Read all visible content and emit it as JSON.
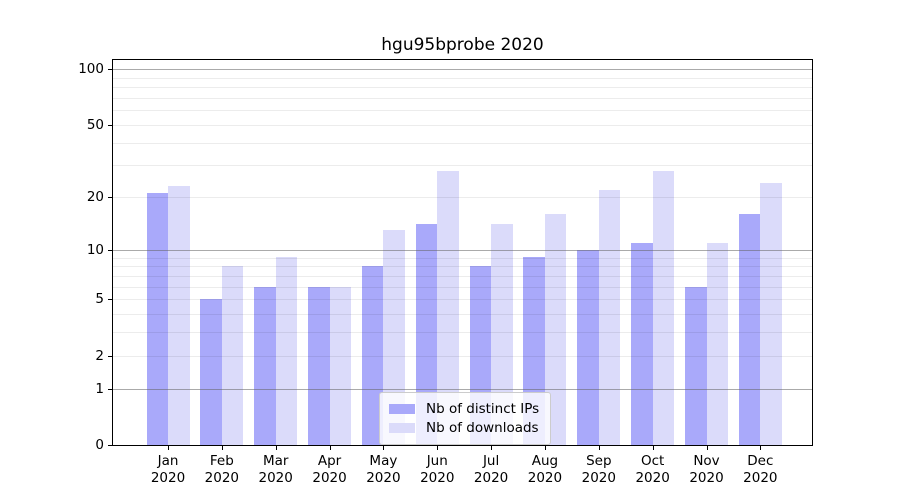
{
  "chart_data": {
    "type": "bar",
    "title": "hgu95bprobe 2020",
    "categories": [
      "Jan",
      "Feb",
      "Mar",
      "Apr",
      "May",
      "Jun",
      "Jul",
      "Aug",
      "Sep",
      "Oct",
      "Nov",
      "Dec"
    ],
    "x_year_suffix": "2020",
    "series": [
      {
        "name": "Nb of distinct IPs",
        "key": "distinct-ips",
        "color": "#A9A9FA",
        "values": [
          21,
          5,
          6,
          6,
          8,
          14,
          8,
          9,
          10,
          11,
          6,
          16
        ]
      },
      {
        "name": "Nb of downloads",
        "key": "downloads",
        "color": "#DBDBFA",
        "values": [
          23,
          8,
          9,
          6,
          13,
          28,
          14,
          16,
          22,
          28,
          11,
          24
        ]
      }
    ],
    "ylabel": "",
    "xlabel": "",
    "y_axis": {
      "scale": "log10(value+1)",
      "tick_labels": [
        0,
        1,
        2,
        5,
        10,
        20,
        50,
        100
      ],
      "major_gridlines": [
        1,
        10,
        100
      ],
      "minor_gridlines": [
        2,
        3,
        4,
        5,
        6,
        7,
        8,
        9,
        20,
        30,
        40,
        50,
        60,
        70,
        80,
        90
      ],
      "ylim_top_value": 112
    },
    "grid": true,
    "legend": {
      "position": "lower center",
      "entries": [
        "Nb of distinct IPs",
        "Nb of downloads"
      ]
    },
    "colors": {
      "axis": "#000000",
      "major_grid": "#ABABAB",
      "minor_grid": "#EBEBEB",
      "background": "#FFFFFF"
    }
  }
}
